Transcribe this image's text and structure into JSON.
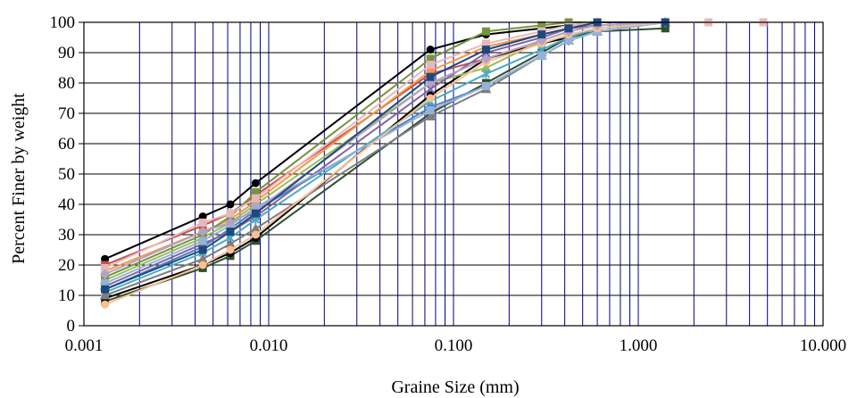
{
  "chart_data": {
    "type": "line",
    "xscale": "log",
    "xlabel": "Graine Size (mm)",
    "ylabel": "Percent Finer by weight",
    "xlim": [
      0.001,
      10
    ],
    "ylim": [
      0,
      100
    ],
    "x_ticks": [
      "0.001",
      "0.010",
      "0.100",
      "1.000",
      "10.000"
    ],
    "y_ticks": [
      "0",
      "10",
      "20",
      "30",
      "40",
      "50",
      "60",
      "70",
      "80",
      "90",
      "100"
    ],
    "grid": true,
    "grid_color": "#000080",
    "legend": "none",
    "series": [
      {
        "color": "#000000",
        "marker": "circle",
        "x": [
          0.0013,
          0.0044,
          0.0062,
          0.0085,
          0.075,
          0.15,
          0.3,
          0.42,
          0.6,
          1.4
        ],
        "y": [
          22,
          36,
          40,
          47,
          91,
          96,
          98,
          99,
          100,
          100
        ]
      },
      {
        "color": "#2f4f2f",
        "marker": "square",
        "x": [
          0.0013,
          0.0044,
          0.0062,
          0.0085,
          0.075,
          0.15,
          0.3,
          0.42,
          0.6,
          1.4
        ],
        "y": [
          8,
          19,
          23,
          28,
          70,
          80,
          90,
          95,
          97,
          98
        ]
      },
      {
        "color": "#000000",
        "marker": "circle",
        "x": [
          0.0013,
          0.0044,
          0.0062,
          0.0085,
          0.075,
          0.15,
          0.3,
          0.42,
          0.6,
          1.4
        ],
        "y": [
          9,
          20,
          24,
          29,
          76,
          88,
          93,
          95,
          98,
          100
        ]
      },
      {
        "color": "#4f81bd",
        "marker": "diamond",
        "x": [
          0.0013,
          0.0044,
          0.0062,
          0.0085,
          0.075,
          0.15,
          0.3,
          0.42,
          0.6,
          1.4
        ],
        "y": [
          12,
          26,
          32,
          38,
          72,
          79,
          89,
          94,
          97,
          100
        ]
      },
      {
        "color": "#c0504d",
        "marker": "square",
        "x": [
          0.0013,
          0.0044,
          0.0062,
          0.0085,
          0.075,
          0.15,
          0.3,
          0.42,
          0.6,
          1.4
        ],
        "y": [
          20,
          33,
          37,
          43,
          83,
          88,
          94,
          97,
          99,
          100
        ]
      },
      {
        "color": "#9bbb59",
        "marker": "triangle",
        "x": [
          0.0013,
          0.0044,
          0.0062,
          0.0085,
          0.075,
          0.15,
          0.3,
          0.42,
          0.6,
          1.4
        ],
        "y": [
          15,
          29,
          34,
          40,
          80,
          85,
          94,
          97,
          99,
          100
        ]
      },
      {
        "color": "#8064a2",
        "marker": "x",
        "x": [
          0.0013,
          0.0044,
          0.0062,
          0.0085,
          0.075,
          0.15,
          0.3,
          0.42,
          0.6,
          1.4
        ],
        "y": [
          13,
          27,
          31,
          36,
          78,
          90,
          95,
          98,
          99,
          100
        ]
      },
      {
        "color": "#4bacc6",
        "marker": "star",
        "x": [
          0.0013,
          0.0044,
          0.0062,
          0.0085,
          0.075,
          0.15,
          0.3,
          0.42,
          0.6,
          1.4
        ],
        "y": [
          11,
          24,
          29,
          35,
          74,
          83,
          91,
          95,
          98,
          100
        ]
      },
      {
        "color": "#f79646",
        "marker": "circle",
        "x": [
          0.0013,
          0.0044,
          0.0062,
          0.0085,
          0.075,
          0.15,
          0.3,
          0.42,
          0.6,
          1.4
        ],
        "y": [
          18,
          31,
          35,
          41,
          84,
          92,
          96,
          98,
          100,
          100
        ]
      },
      {
        "color": "#77933c",
        "marker": "square",
        "x": [
          0.0013,
          0.0044,
          0.0062,
          0.0085,
          0.075,
          0.15,
          0.3,
          0.42,
          0.6,
          1.4
        ],
        "y": [
          16,
          30,
          36,
          44,
          88,
          97,
          99,
          100,
          100,
          100
        ]
      },
      {
        "color": "#7f7f7f",
        "marker": "triangle",
        "x": [
          0.0013,
          0.0044,
          0.0062,
          0.0085,
          0.075,
          0.15,
          0.3,
          0.42,
          0.6,
          1.4
        ],
        "y": [
          10,
          22,
          27,
          32,
          69,
          78,
          89,
          94,
          97,
          100
        ]
      },
      {
        "color": "#95b3d7",
        "marker": "square",
        "x": [
          0.0013,
          0.0044,
          0.0062,
          0.0085,
          0.075,
          0.15,
          0.3,
          0.42,
          0.6,
          1.4
        ],
        "y": [
          14,
          28,
          33,
          39,
          71,
          79,
          89,
          94,
          97,
          100
        ]
      },
      {
        "color": "#e6b9b8",
        "marker": "square",
        "x": [
          0.0013,
          0.0044,
          0.0062,
          0.0085,
          0.075,
          0.15,
          0.3,
          0.42,
          0.6,
          1.4,
          2.4,
          4.75
        ],
        "y": [
          19,
          34,
          37,
          42,
          86,
          93,
          97,
          99,
          100,
          100,
          100,
          100
        ]
      },
      {
        "color": "#fac090",
        "marker": "circle",
        "x": [
          0.0013,
          0.0044,
          0.0062,
          0.0085,
          0.075,
          0.15,
          0.3,
          0.42,
          0.6,
          1.4
        ],
        "y": [
          7,
          20,
          25,
          30,
          75,
          87,
          93,
          96,
          98,
          100
        ]
      },
      {
        "color": "#b3a2c7",
        "marker": "diamond",
        "x": [
          0.0013,
          0.0044,
          0.0062,
          0.0085,
          0.075,
          0.15,
          0.3,
          0.42,
          0.6,
          1.4
        ],
        "y": [
          17,
          31,
          34,
          38,
          80,
          88,
          94,
          97,
          99,
          100
        ]
      },
      {
        "color": "#1f497d",
        "marker": "square",
        "x": [
          0.0013,
          0.0044,
          0.0062,
          0.0085,
          0.075,
          0.15,
          0.3,
          0.42,
          0.6,
          1.4
        ],
        "y": [
          12,
          25,
          31,
          37,
          82,
          91,
          96,
          98,
          100,
          100
        ]
      }
    ]
  }
}
